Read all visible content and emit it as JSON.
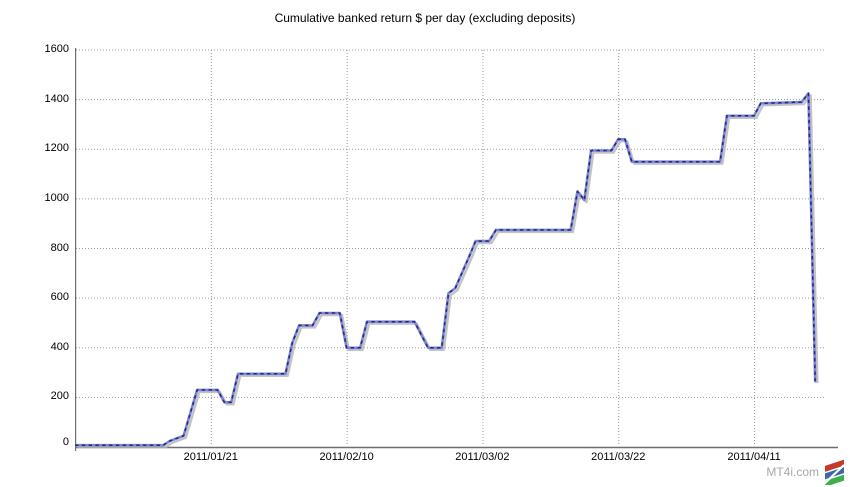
{
  "title": "Cumulative banked return $ per day (excluding deposits)",
  "watermark": {
    "label": "MT4i.com",
    "text_color": "#a8a8a8",
    "logo_colors": {
      "top": "#c23b2a",
      "middle": "#3a67ad",
      "bottom": "#3fae4d"
    }
  },
  "chart_data": {
    "type": "line",
    "title": "Cumulative banked return $ per day (excluding deposits)",
    "xlabel": "",
    "ylabel": "",
    "ylim": [
      0,
      1600
    ],
    "y_ticks": [
      0,
      200,
      400,
      600,
      800,
      1000,
      1200,
      1400,
      1600
    ],
    "x_tick_labels": [
      "2011/01/21",
      "2011/02/10",
      "2011/03/02",
      "2011/03/22",
      "2011/04/11"
    ],
    "x_tick_days": [
      20,
      40,
      60,
      80,
      100
    ],
    "x_day_range": [
      0,
      110.3
    ],
    "x_origin_date": "2011/01/01",
    "grid": "dotted",
    "legend": "none",
    "line_color": "#7b85d6",
    "marker_dash_color": "#26267d",
    "shadow_color": "#b4b4b4",
    "axis_color": "#6e6e6e",
    "grid_color": "#9a9a9a",
    "series": [
      {
        "name": "Cumulative banked return $",
        "points": [
          {
            "date": "2011/01/01",
            "day": 0,
            "value": 0
          },
          {
            "date": "2011/01/14",
            "day": 13,
            "value": 0
          },
          {
            "date": "2011/01/15",
            "day": 14,
            "value": 25
          },
          {
            "date": "2011/01/17",
            "day": 16,
            "value": 45
          },
          {
            "date": "2011/01/19",
            "day": 18,
            "value": 230
          },
          {
            "date": "2011/01/22",
            "day": 21,
            "value": 230
          },
          {
            "date": "2011/01/23",
            "day": 22,
            "value": 180
          },
          {
            "date": "2011/01/24",
            "day": 23,
            "value": 180
          },
          {
            "date": "2011/01/25",
            "day": 24,
            "value": 295
          },
          {
            "date": "2011/02/01",
            "day": 31,
            "value": 295
          },
          {
            "date": "2011/02/02",
            "day": 32,
            "value": 420
          },
          {
            "date": "2011/02/03",
            "day": 33,
            "value": 490
          },
          {
            "date": "2011/02/05",
            "day": 35,
            "value": 490
          },
          {
            "date": "2011/02/06",
            "day": 36,
            "value": 540
          },
          {
            "date": "2011/02/09",
            "day": 39,
            "value": 540
          },
          {
            "date": "2011/02/10",
            "day": 40,
            "value": 400
          },
          {
            "date": "2011/02/12",
            "day": 42,
            "value": 400
          },
          {
            "date": "2011/02/13",
            "day": 43,
            "value": 505
          },
          {
            "date": "2011/02/20",
            "day": 50,
            "value": 505
          },
          {
            "date": "2011/02/22",
            "day": 52,
            "value": 400
          },
          {
            "date": "2011/02/24",
            "day": 54,
            "value": 400
          },
          {
            "date": "2011/02/25",
            "day": 55,
            "value": 620
          },
          {
            "date": "2011/02/26",
            "day": 56,
            "value": 640
          },
          {
            "date": "2011/02/28",
            "day": 58,
            "value": 765
          },
          {
            "date": "2011/03/01",
            "day": 59,
            "value": 830
          },
          {
            "date": "2011/03/03",
            "day": 61,
            "value": 830
          },
          {
            "date": "2011/03/04",
            "day": 62,
            "value": 875
          },
          {
            "date": "2011/03/15",
            "day": 73,
            "value": 875
          },
          {
            "date": "2011/03/16",
            "day": 74,
            "value": 1030
          },
          {
            "date": "2011/03/17",
            "day": 75,
            "value": 995
          },
          {
            "date": "2011/03/18",
            "day": 76,
            "value": 1195
          },
          {
            "date": "2011/03/21",
            "day": 79,
            "value": 1195
          },
          {
            "date": "2011/03/22",
            "day": 80,
            "value": 1240
          },
          {
            "date": "2011/03/23",
            "day": 81,
            "value": 1240
          },
          {
            "date": "2011/03/24",
            "day": 82,
            "value": 1150
          },
          {
            "date": "2011/04/06",
            "day": 95,
            "value": 1150
          },
          {
            "date": "2011/04/07",
            "day": 96,
            "value": 1335
          },
          {
            "date": "2011/04/11",
            "day": 100,
            "value": 1335
          },
          {
            "date": "2011/04/12",
            "day": 101,
            "value": 1385
          },
          {
            "date": "2011/04/18",
            "day": 107,
            "value": 1390
          },
          {
            "date": "2011/04/19",
            "day": 108,
            "value": 1425
          },
          {
            "date": "2011/04/20",
            "day": 109,
            "value": 265
          }
        ]
      }
    ]
  }
}
